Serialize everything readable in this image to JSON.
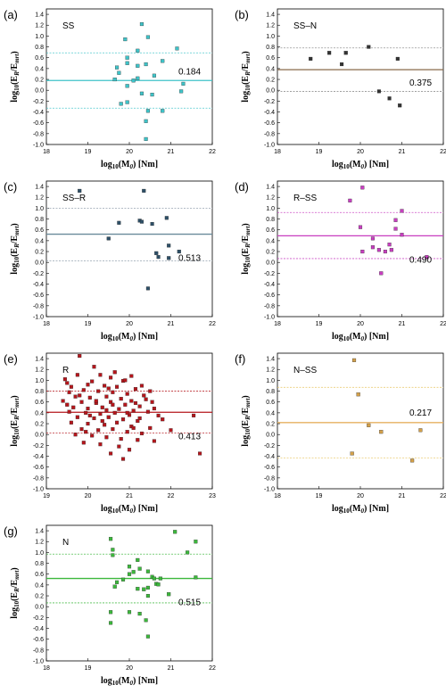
{
  "chart_data": [
    {
      "type": "scatter",
      "letter": "(a)",
      "name": "SS",
      "color": "#3fc3c8",
      "xlim": [
        18,
        22
      ],
      "xticks": [
        18,
        19,
        20,
        21,
        22
      ],
      "ylim": [
        -1.0,
        1.5
      ],
      "yticks": [
        -1.0,
        -0.8,
        -0.6,
        -0.4,
        -0.2,
        0.0,
        0.2,
        0.4,
        0.6,
        0.8,
        1.0,
        1.2,
        1.4
      ],
      "ylabel": "log10(ER/Emrt)",
      "xlabel": "log10(M0) [Nm]",
      "mean": 0.18,
      "upper": 0.69,
      "lower": -0.33,
      "std_label": "0.184",
      "points": [
        [
          20.3,
          1.22
        ],
        [
          20.45,
          0.98
        ],
        [
          19.9,
          0.94
        ],
        [
          21.15,
          0.77
        ],
        [
          20.2,
          0.73
        ],
        [
          19.95,
          0.6
        ],
        [
          20.8,
          0.54
        ],
        [
          19.95,
          0.5
        ],
        [
          20.4,
          0.48
        ],
        [
          20.2,
          0.45
        ],
        [
          19.7,
          0.42
        ],
        [
          19.75,
          0.32
        ],
        [
          20.6,
          0.27
        ],
        [
          20.2,
          0.22
        ],
        [
          19.65,
          0.2
        ],
        [
          20.1,
          0.18
        ],
        [
          21.3,
          0.12
        ],
        [
          19.95,
          0.08
        ],
        [
          21.25,
          -0.02
        ],
        [
          20.3,
          -0.06
        ],
        [
          20.55,
          -0.08
        ],
        [
          19.95,
          -0.22
        ],
        [
          19.8,
          -0.25
        ],
        [
          20.8,
          -0.38
        ],
        [
          20.45,
          -0.38
        ],
        [
          20.4,
          -0.57
        ],
        [
          20.4,
          -0.9
        ]
      ]
    },
    {
      "type": "scatter",
      "letter": "(b)",
      "name": "SS–N",
      "color": "#333333",
      "xlim": [
        18,
        22
      ],
      "xticks": [
        18,
        19,
        20,
        21,
        22
      ],
      "ylim": [
        -1.0,
        1.5
      ],
      "yticks": [
        -1.0,
        -0.8,
        -0.6,
        -0.4,
        -0.2,
        0.0,
        0.2,
        0.4,
        0.6,
        0.8,
        1.0,
        1.2,
        1.4
      ],
      "ylabel": "log10(ER/Emrt)",
      "xlabel": "log10(M0) [Nm]",
      "mean": 0.38,
      "upper": 0.78,
      "lower": -0.02,
      "line_color": "#8a6a4a",
      "band_color": "#888888",
      "std_label": "0.375",
      "points": [
        [
          18.8,
          0.58
        ],
        [
          19.25,
          0.69
        ],
        [
          19.65,
          0.69
        ],
        [
          19.55,
          0.48
        ],
        [
          20.2,
          0.8
        ],
        [
          20.9,
          0.58
        ],
        [
          20.45,
          -0.02
        ],
        [
          20.7,
          -0.15
        ],
        [
          20.95,
          -0.28
        ]
      ]
    },
    {
      "type": "scatter",
      "letter": "(c)",
      "name": "SS–R",
      "color": "#2e5068",
      "xlim": [
        18,
        22
      ],
      "xticks": [
        18,
        19,
        20,
        21,
        22
      ],
      "ylim": [
        -1.0,
        1.5
      ],
      "yticks": [
        -1.0,
        -0.8,
        -0.6,
        -0.4,
        -0.2,
        0.0,
        0.2,
        0.4,
        0.6,
        0.8,
        1.0,
        1.2,
        1.4
      ],
      "ylabel": "log10(ER/Emrt)",
      "xlabel": "log10(M0) [Nm]",
      "mean": 0.52,
      "upper": 1.0,
      "lower": 0.03,
      "line_color": "#6a8a9a",
      "band_color": "#8a9aa8",
      "std_label": "0.513",
      "points": [
        [
          18.8,
          1.32
        ],
        [
          20.35,
          1.32
        ],
        [
          19.75,
          0.73
        ],
        [
          20.25,
          0.77
        ],
        [
          20.3,
          0.75
        ],
        [
          20.55,
          0.71
        ],
        [
          20.9,
          0.82
        ],
        [
          20.95,
          0.31
        ],
        [
          19.5,
          0.44
        ],
        [
          20.65,
          0.17
        ],
        [
          21.2,
          0.2
        ],
        [
          20.7,
          0.1
        ],
        [
          20.95,
          0.08
        ],
        [
          20.45,
          -0.48
        ]
      ]
    },
    {
      "type": "scatter",
      "letter": "(d)",
      "name": "R–SS",
      "color": "#c83ec0",
      "xlim": [
        18,
        22
      ],
      "xticks": [
        18,
        19,
        20,
        21,
        22
      ],
      "ylim": [
        -1.0,
        1.5
      ],
      "yticks": [
        -1.0,
        -0.8,
        -0.6,
        -0.4,
        -0.2,
        0.0,
        0.2,
        0.4,
        0.6,
        0.8,
        1.0,
        1.2,
        1.4
      ],
      "ylabel": "log10(ER/Emrt)",
      "xlabel": "log10(M0) [Nm]",
      "mean": 0.49,
      "upper": 0.92,
      "lower": 0.07,
      "std_label": "0.490",
      "points": [
        [
          20.05,
          1.38
        ],
        [
          19.75,
          1.14
        ],
        [
          21.0,
          0.95
        ],
        [
          20.85,
          0.78
        ],
        [
          20.0,
          0.65
        ],
        [
          20.3,
          0.44
        ],
        [
          21.0,
          0.51
        ],
        [
          20.85,
          0.62
        ],
        [
          20.3,
          0.28
        ],
        [
          20.45,
          0.23
        ],
        [
          20.7,
          0.33
        ],
        [
          20.05,
          0.2
        ],
        [
          20.6,
          0.2
        ],
        [
          20.75,
          0.23
        ],
        [
          21.6,
          0.1
        ],
        [
          20.5,
          -0.2
        ]
      ]
    },
    {
      "type": "scatter",
      "letter": "(e)",
      "name": "R",
      "color": "#b5161c",
      "xlim": [
        19,
        23
      ],
      "xticks": [
        19,
        20,
        21,
        22,
        23
      ],
      "ylim": [
        -1.0,
        1.5
      ],
      "yticks": [
        -1.0,
        -0.8,
        -0.6,
        -0.4,
        -0.2,
        0.0,
        0.2,
        0.4,
        0.6,
        0.8,
        1.0,
        1.2,
        1.4
      ],
      "ylabel": "log10(ER/Emrt)",
      "xlabel": "log10(M0) [Nm]",
      "mean": 0.41,
      "upper": 0.8,
      "lower": 0.03,
      "std_label": "0.413",
      "points": [
        [
          19.8,
          1.45
        ],
        [
          19.45,
          1.02
        ],
        [
          19.75,
          1.1
        ],
        [
          20.3,
          1.1
        ],
        [
          21.05,
          1.08
        ],
        [
          20.55,
          1.05
        ],
        [
          19.5,
          0.95
        ],
        [
          20.1,
          0.98
        ],
        [
          20.85,
          0.99
        ],
        [
          21.3,
          0.9
        ],
        [
          19.6,
          0.88
        ],
        [
          20.0,
          0.92
        ],
        [
          20.4,
          0.9
        ],
        [
          20.7,
          0.88
        ],
        [
          21.15,
          0.84
        ],
        [
          21.5,
          0.8
        ],
        [
          19.55,
          0.78
        ],
        [
          19.9,
          0.82
        ],
        [
          20.25,
          0.8
        ],
        [
          20.6,
          0.78
        ],
        [
          20.95,
          0.75
        ],
        [
          21.35,
          0.72
        ],
        [
          19.7,
          0.7
        ],
        [
          20.05,
          0.68
        ],
        [
          20.45,
          0.7
        ],
        [
          20.8,
          0.66
        ],
        [
          21.05,
          0.62
        ],
        [
          21.55,
          0.6
        ],
        [
          19.4,
          0.62
        ],
        [
          19.85,
          0.6
        ],
        [
          20.2,
          0.58
        ],
        [
          20.55,
          0.6
        ],
        [
          20.9,
          0.55
        ],
        [
          21.25,
          0.52
        ],
        [
          19.65,
          0.5
        ],
        [
          20.0,
          0.48
        ],
        [
          20.35,
          0.5
        ],
        [
          20.75,
          0.47
        ],
        [
          21.1,
          0.44
        ],
        [
          21.45,
          0.42
        ],
        [
          19.55,
          0.42
        ],
        [
          19.95,
          0.4
        ],
        [
          20.3,
          0.38
        ],
        [
          20.65,
          0.4
        ],
        [
          21.0,
          0.36
        ],
        [
          21.7,
          0.35
        ],
        [
          19.75,
          0.32
        ],
        [
          20.15,
          0.3
        ],
        [
          20.5,
          0.32
        ],
        [
          20.85,
          0.28
        ],
        [
          21.2,
          0.25
        ],
        [
          21.8,
          0.28
        ],
        [
          19.6,
          0.22
        ],
        [
          20.0,
          0.2
        ],
        [
          20.4,
          0.18
        ],
        [
          20.7,
          0.22
        ],
        [
          21.05,
          0.15
        ],
        [
          21.5,
          0.12
        ],
        [
          19.85,
          0.1
        ],
        [
          20.25,
          0.08
        ],
        [
          20.6,
          0.1
        ],
        [
          20.95,
          0.05
        ],
        [
          21.3,
          0.02
        ],
        [
          22.0,
          0.08
        ],
        [
          19.7,
          0.0
        ],
        [
          20.1,
          -0.02
        ],
        [
          20.45,
          -0.05
        ],
        [
          20.8,
          -0.08
        ],
        [
          21.2,
          -0.1
        ],
        [
          21.6,
          -0.12
        ],
        [
          19.9,
          -0.15
        ],
        [
          20.3,
          -0.18
        ],
        [
          20.75,
          -0.22
        ],
        [
          21.0,
          -0.28
        ],
        [
          20.55,
          -0.35
        ],
        [
          20.85,
          -0.45
        ],
        [
          22.55,
          0.35
        ],
        [
          22.7,
          -0.35
        ],
        [
          20.15,
          1.25
        ],
        [
          20.65,
          1.15
        ],
        [
          19.95,
          0.05
        ],
        [
          21.4,
          0.65
        ],
        [
          20.2,
          0.62
        ],
        [
          20.5,
          0.85
        ],
        [
          21.6,
          0.48
        ],
        [
          19.5,
          0.55
        ],
        [
          20.9,
          1.0
        ],
        [
          21.25,
          0.3
        ],
        [
          20.05,
          0.35
        ],
        [
          20.35,
          0.25
        ],
        [
          20.6,
          0.55
        ],
        [
          19.8,
          0.72
        ],
        [
          21.15,
          0.58
        ],
        [
          20.45,
          0.45
        ],
        [
          20.95,
          0.4
        ],
        [
          21.1,
          0.12
        ]
      ]
    },
    {
      "type": "scatter",
      "letter": "(f)",
      "name": "N–SS",
      "color": "#d3a04a",
      "xlim": [
        18,
        22
      ],
      "xticks": [
        18,
        19,
        20,
        21,
        22
      ],
      "ylim": [
        -1.0,
        1.5
      ],
      "yticks": [
        -1.0,
        -0.8,
        -0.6,
        -0.4,
        -0.2,
        0.0,
        0.2,
        0.4,
        0.6,
        0.8,
        1.0,
        1.2,
        1.4
      ],
      "ylabel": "log10(ER/Emrt)",
      "xlabel": "log10(M0) [Nm]",
      "mean": 0.22,
      "upper": 0.87,
      "lower": -0.43,
      "line_color": "#e6b060",
      "band_color": "#e8c86a",
      "std_label": "0.217",
      "points": [
        [
          19.85,
          1.37
        ],
        [
          19.95,
          0.74
        ],
        [
          20.2,
          0.17
        ],
        [
          20.5,
          0.05
        ],
        [
          21.45,
          0.08
        ],
        [
          19.8,
          -0.35
        ],
        [
          21.25,
          -0.48
        ]
      ]
    },
    {
      "type": "scatter",
      "letter": "(g)",
      "name": "N",
      "color": "#3cb83c",
      "xlim": [
        18,
        22
      ],
      "xticks": [
        18,
        19,
        20,
        21,
        22
      ],
      "ylim": [
        -1.0,
        1.5
      ],
      "yticks": [
        -1.0,
        -0.8,
        -0.6,
        -0.4,
        -0.2,
        0.0,
        0.2,
        0.4,
        0.6,
        0.8,
        1.0,
        1.2,
        1.4
      ],
      "ylabel": "log10(ER/Emrt)",
      "xlabel": "log10(M0) [Nm]",
      "mean": 0.52,
      "upper": 0.97,
      "lower": 0.07,
      "std_label": "0.515",
      "points": [
        [
          21.1,
          1.38
        ],
        [
          19.55,
          1.25
        ],
        [
          21.6,
          1.2
        ],
        [
          19.6,
          1.05
        ],
        [
          21.4,
          1.0
        ],
        [
          19.6,
          0.95
        ],
        [
          20.2,
          0.86
        ],
        [
          20.0,
          0.74
        ],
        [
          20.25,
          0.7
        ],
        [
          20.45,
          0.65
        ],
        [
          20.1,
          0.64
        ],
        [
          20.0,
          0.6
        ],
        [
          20.55,
          0.55
        ],
        [
          20.6,
          0.52
        ],
        [
          21.6,
          0.54
        ],
        [
          19.85,
          0.5
        ],
        [
          20.75,
          0.52
        ],
        [
          19.7,
          0.45
        ],
        [
          20.65,
          0.42
        ],
        [
          20.7,
          0.41
        ],
        [
          19.65,
          0.37
        ],
        [
          20.45,
          0.35
        ],
        [
          20.2,
          0.33
        ],
        [
          20.35,
          0.32
        ],
        [
          20.95,
          0.23
        ],
        [
          20.45,
          0.2
        ],
        [
          19.55,
          -0.1
        ],
        [
          20.0,
          -0.1
        ],
        [
          20.25,
          -0.13
        ],
        [
          19.55,
          -0.3
        ],
        [
          20.4,
          -0.25
        ],
        [
          20.45,
          -0.55
        ]
      ]
    }
  ]
}
